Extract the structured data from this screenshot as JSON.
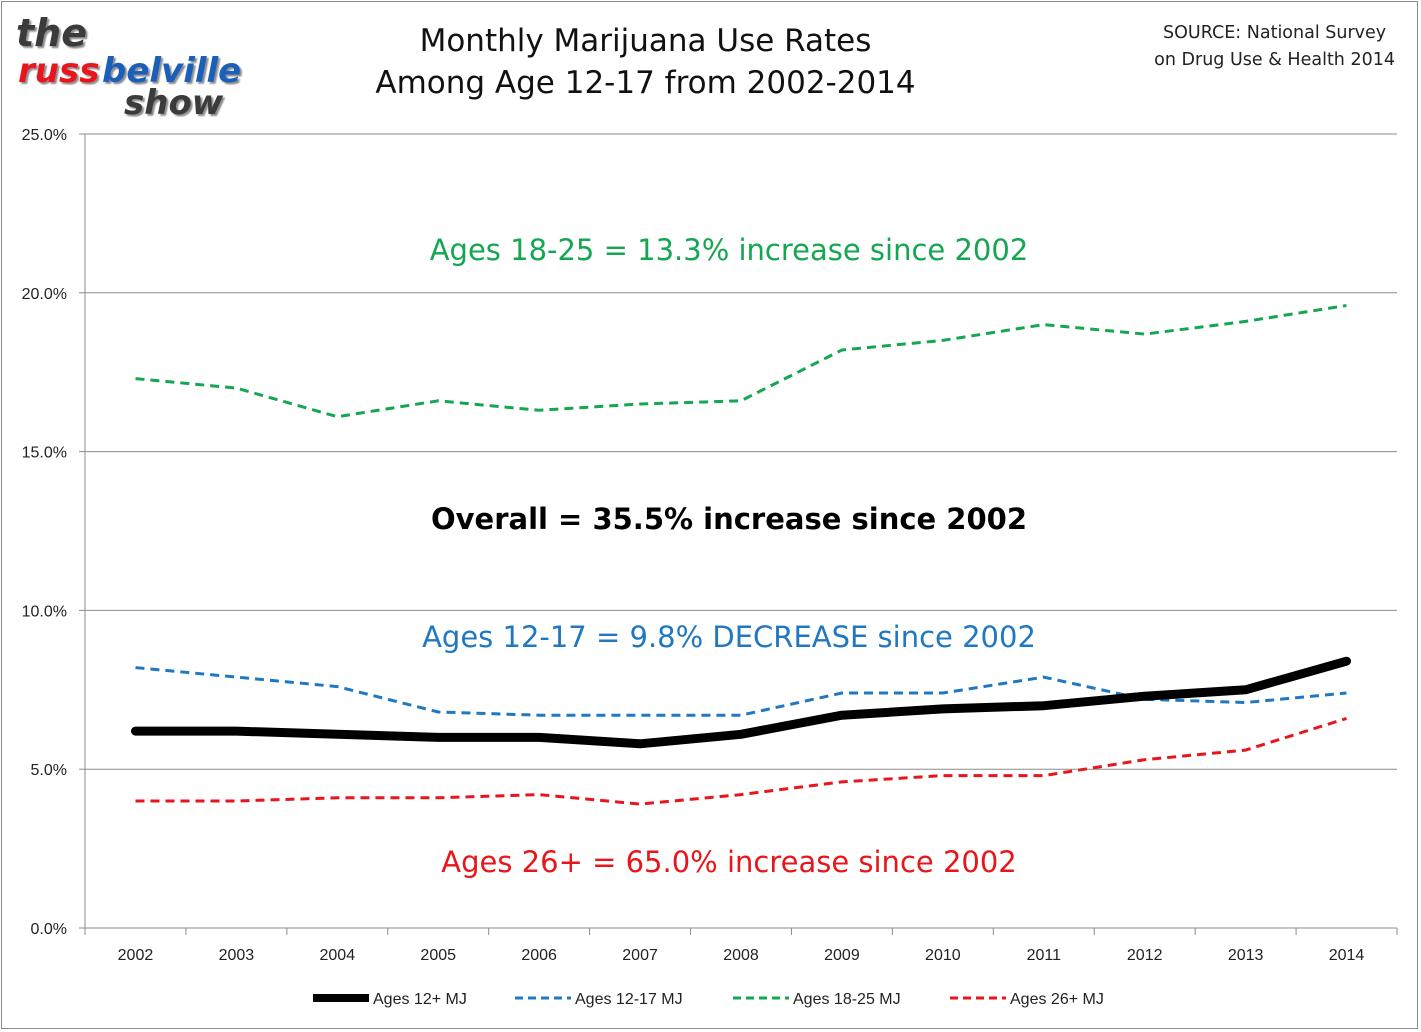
{
  "logo": {
    "line1": "the",
    "line2a": "russ",
    "line2b": "belville",
    "line3": "show"
  },
  "source": {
    "line1": "SOURCE: National Survey",
    "line2": "on Drug Use & Health 2014"
  },
  "colors": {
    "overall": "#000000",
    "teen": "#1f78c1",
    "young_adult": "#14a651",
    "adult": "#e8161b"
  },
  "chart_data": {
    "type": "line",
    "title": "Monthly Marijuana Use Rates Among Age 12-17 from 2002-2014",
    "title_lines": [
      "Monthly Marijuana Use Rates",
      "Among Age 12-17 from 2002-2014"
    ],
    "x": [
      "2002",
      "2003",
      "2004",
      "2005",
      "2006",
      "2007",
      "2008",
      "2009",
      "2010",
      "2011",
      "2012",
      "2013",
      "2014"
    ],
    "ylim": [
      0,
      25
    ],
    "yticks": [
      0,
      5,
      10,
      15,
      20,
      25
    ],
    "ytick_labels": [
      "0.0%",
      "5.0%",
      "10.0%",
      "15.0%",
      "20.0%",
      "25.0%"
    ],
    "grid": true,
    "legend": "bottom",
    "series": [
      {
        "name": "Ages 12+ MJ",
        "values": [
          6.2,
          6.2,
          6.1,
          6.0,
          6.0,
          5.8,
          6.1,
          6.7,
          6.9,
          7.0,
          7.3,
          7.5,
          8.4
        ]
      },
      {
        "name": "Ages 12-17 MJ",
        "values": [
          8.2,
          7.9,
          7.6,
          6.8,
          6.7,
          6.7,
          6.7,
          7.4,
          7.4,
          7.9,
          7.2,
          7.1,
          7.4
        ]
      },
      {
        "name": "Ages 18-25 MJ",
        "values": [
          17.3,
          17.0,
          16.1,
          16.6,
          16.3,
          16.5,
          16.6,
          18.2,
          18.5,
          19.0,
          18.7,
          19.1,
          19.6
        ]
      },
      {
        "name": "Ages 26+ MJ",
        "values": [
          4.0,
          4.0,
          4.1,
          4.1,
          4.2,
          3.9,
          4.2,
          4.6,
          4.8,
          4.8,
          5.3,
          5.6,
          6.6
        ]
      }
    ],
    "annotations": [
      {
        "text": "Ages 18-25 = 13.3% increase since 2002",
        "series": "Ages 18-25 MJ"
      },
      {
        "text": "Overall = 35.5% increase since 2002",
        "series": "Ages 12+ MJ"
      },
      {
        "text": "Ages 12-17 = 9.8% DECREASE since 2002",
        "series": "Ages 12-17 MJ"
      },
      {
        "text": "Ages 26+ = 65.0% increase since 2002",
        "series": "Ages 26+ MJ"
      }
    ]
  }
}
